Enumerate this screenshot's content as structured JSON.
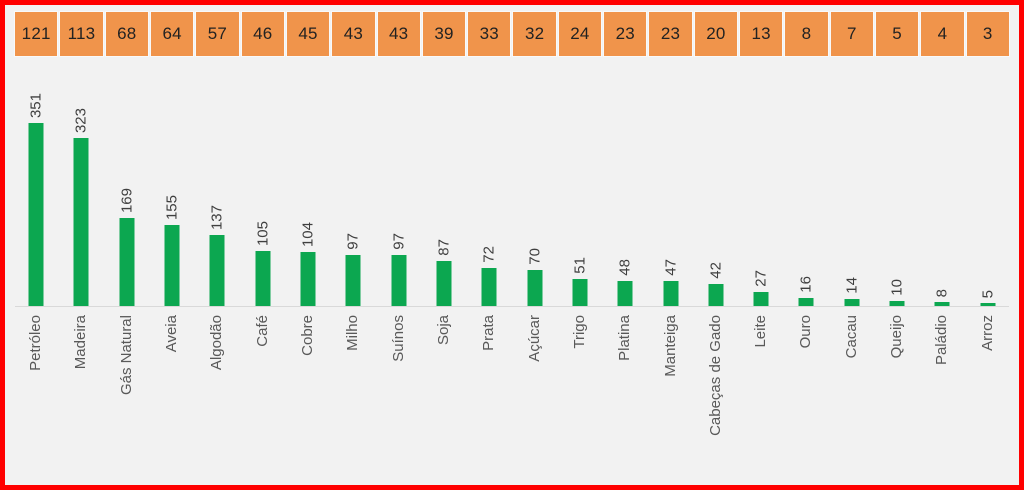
{
  "page": {
    "background_color": "#f2f2f2",
    "frame_border_color": "#ff0000"
  },
  "chart_data": {
    "type": "bar",
    "categories": [
      "Petróleo",
      "Madeira",
      "Gás Natural",
      "Aveia",
      "Algodão",
      "Café",
      "Cobre",
      "Milho",
      "Suínos",
      "Soja",
      "Prata",
      "Açúcar",
      "Trigo",
      "Platina",
      "Manteiga",
      "Cabeças de Gado",
      "Leite",
      "Ouro",
      "Cacau",
      "Queijo",
      "Paládio",
      "Arroz"
    ],
    "series": [
      {
        "name": "header-box-values",
        "values": [
          121,
          113,
          68,
          64,
          57,
          46,
          45,
          43,
          43,
          39,
          33,
          32,
          24,
          23,
          23,
          20,
          13,
          8,
          7,
          5,
          4,
          3
        ]
      },
      {
        "name": "bar-values",
        "values": [
          351,
          323,
          169,
          155,
          137,
          105,
          104,
          97,
          97,
          87,
          72,
          70,
          51,
          48,
          47,
          42,
          27,
          16,
          14,
          10,
          8,
          5
        ]
      }
    ],
    "title": "",
    "xlabel": "",
    "ylabel": "",
    "ylim": [
      0,
      360
    ],
    "grid": false,
    "legend_position": "none",
    "bar_color": "#0ca750",
    "header_box_color": "#f0944b",
    "axis_color": "#d9d9d9",
    "value_label_rotation_deg": 90,
    "category_label_rotation_deg": 90
  }
}
